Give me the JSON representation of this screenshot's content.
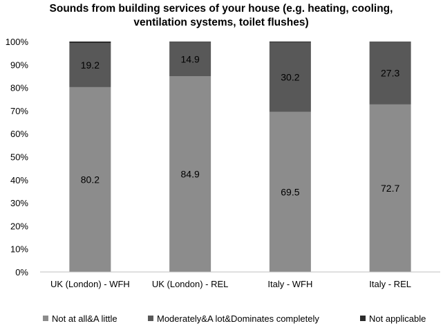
{
  "chart_data": {
    "type": "bar",
    "stacked": true,
    "title_lines": [
      "Sounds from building services of your house (e.g. heating, cooling,",
      "ventilation systems, toilet flushes)"
    ],
    "categories": [
      "UK (London) - WFH",
      "UK (London) - REL",
      "Italy - WFH",
      "Italy - REL"
    ],
    "series": [
      {
        "name": "Not at all&A little",
        "values": [
          80.2,
          84.9,
          69.5,
          72.7
        ],
        "labels": [
          "80.2",
          "84.9",
          "69.5",
          "72.7"
        ],
        "color": "#8c8c8c"
      },
      {
        "name": "Moderately&A lot&Dominates completely",
        "values": [
          19.2,
          14.9,
          30.2,
          27.3
        ],
        "labels": [
          "19.2",
          "14.9",
          "30.2",
          "27.3"
        ],
        "color": "#585858"
      },
      {
        "name": "Not applicable",
        "values": [
          0.6,
          0.2,
          0.3,
          0.0
        ],
        "labels": [
          "",
          "",
          "",
          ""
        ],
        "color": "#2b2b2b"
      }
    ],
    "yticks": [
      "0%",
      "10%",
      "20%",
      "30%",
      "40%",
      "50%",
      "60%",
      "70%",
      "80%",
      "90%",
      "100%"
    ],
    "ylim": [
      0,
      100
    ],
    "legend_position": "bottom"
  }
}
